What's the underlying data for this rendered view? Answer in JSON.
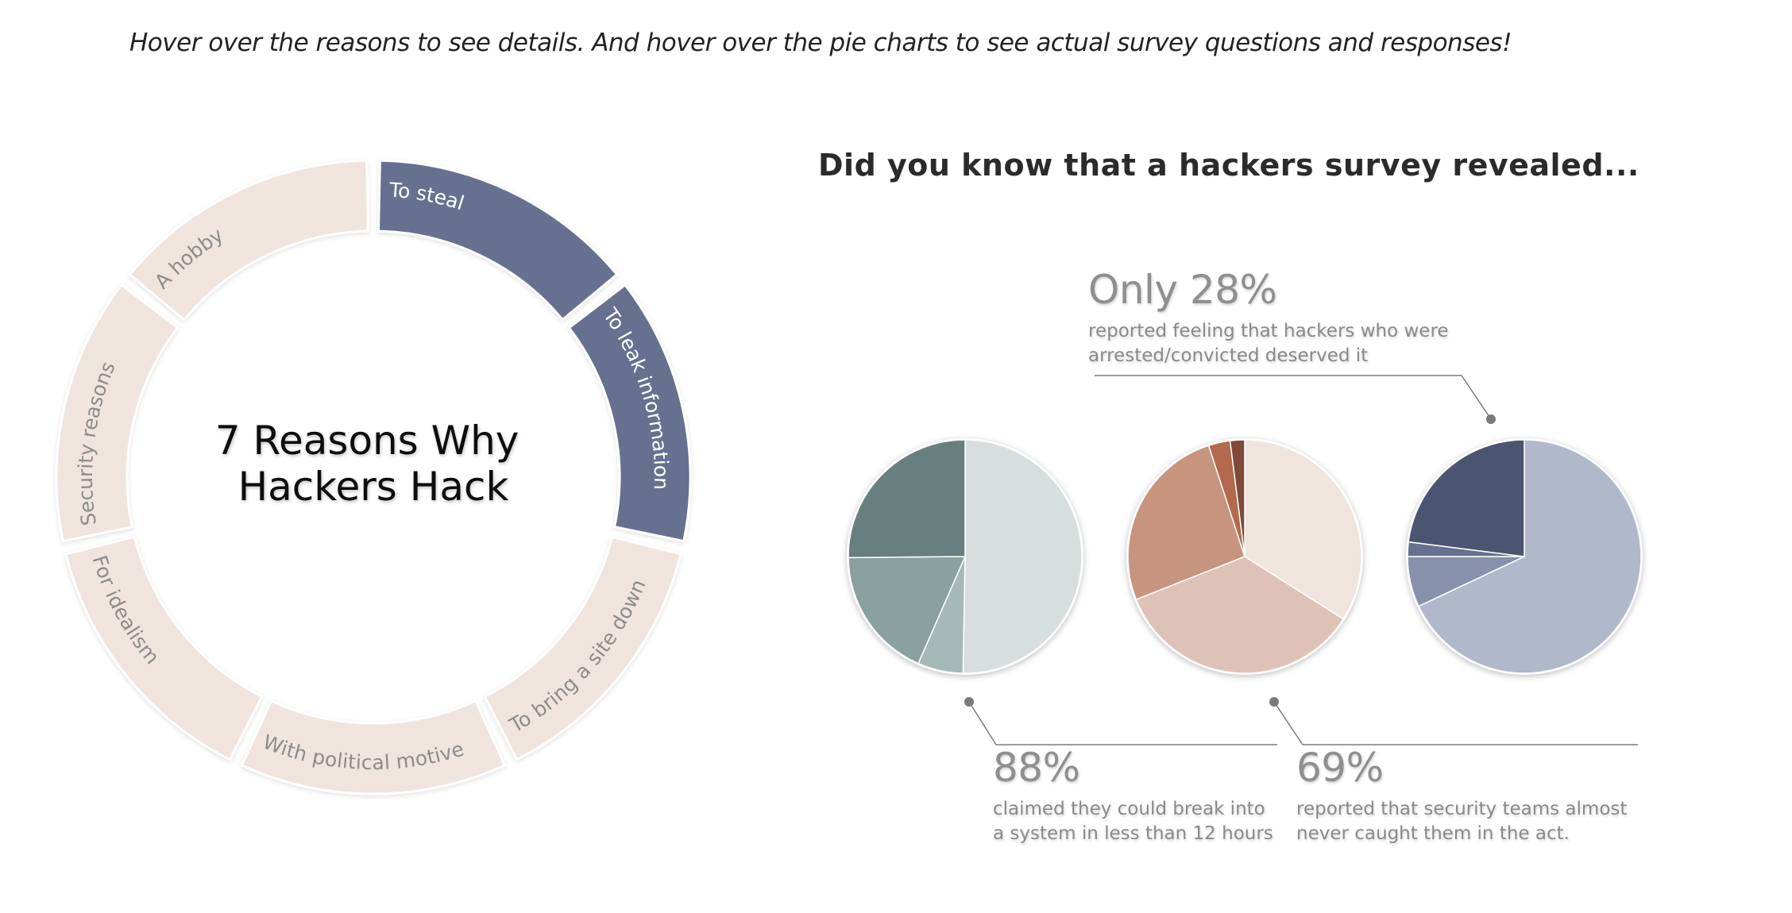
{
  "instructions": "Hover over the reasons to see details. And hover over the pie charts to see actual survey questions and responses!",
  "donut": {
    "title_line1": "7 Reasons Why",
    "title_line2": "Hackers Hack",
    "highlight_color": "#66718f",
    "base_color": "#f0e4df",
    "highlight_text_color": "#ffffff",
    "base_text_color": "#8c8c8c"
  },
  "survey": {
    "heading": "Did you know that a hackers survey revealed...",
    "stats": [
      {
        "value": "Only 28%",
        "description_line1": "reported feeling that hackers who were",
        "description_line2": "arrested/convicted deserved it"
      },
      {
        "value": "88%",
        "description_line1": "claimed they could break into",
        "description_line2": "a system in less than 12 hours"
      },
      {
        "value": "69%",
        "description_line1": "reported that security teams almost",
        "description_line2": "never caught them in the act."
      }
    ]
  },
  "chart_data": [
    {
      "type": "pie",
      "subtype": "donut",
      "title": "7 Reasons Why Hackers Hack",
      "categories": [
        "To steal",
        "To leak information",
        "To bring a site down",
        "With political motive",
        "For idealism",
        "Security reasons",
        "A hobby"
      ],
      "values": [
        1,
        1,
        1,
        1,
        1,
        1,
        1
      ],
      "highlighted": [
        "To steal",
        "To leak information"
      ]
    },
    {
      "type": "pie",
      "values": [
        88,
        11,
        32,
        44
      ],
      "colors": [
        "#d6dfdd",
        "#a5b9b7",
        "#8aa19f",
        "#677f7e"
      ]
    },
    {
      "type": "pie",
      "values": [
        34,
        35,
        26,
        3,
        2
      ],
      "colors": [
        "#f0e4df",
        "#dfc2b7",
        "#c7947f",
        "#b2694e",
        "#7f4a3a"
      ]
    },
    {
      "type": "pie",
      "values": [
        68,
        7,
        2,
        23
      ],
      "colors": [
        "#b1b8cb",
        "#8791ab",
        "#66718f",
        "#4b5470"
      ]
    }
  ]
}
